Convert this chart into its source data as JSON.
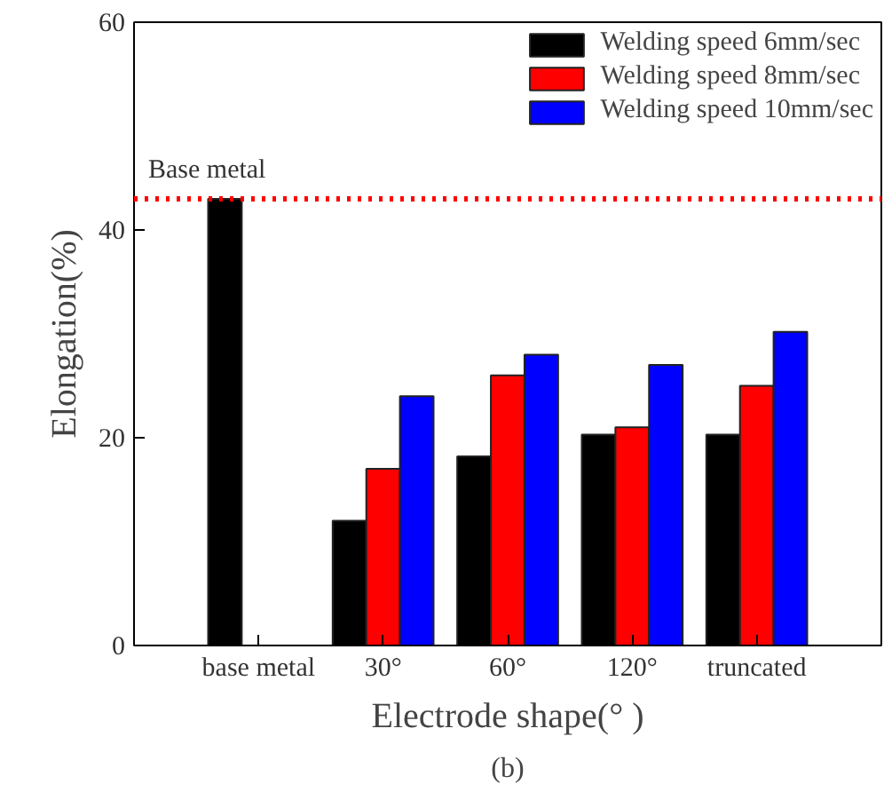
{
  "chart_data": {
    "type": "bar",
    "xlabel": "Electrode shape(° )",
    "ylabel": "Elongation(%)",
    "categories": [
      "base metal",
      "30°",
      "60°",
      "120°",
      "truncated"
    ],
    "series": [
      {
        "name": "Welding speed 6mm/sec",
        "color": "#000000",
        "values": [
          43,
          12,
          18.2,
          20.3,
          20.3
        ]
      },
      {
        "name": "Welding speed 8mm/sec",
        "color": "#ff0000",
        "values": [
          null,
          17,
          26,
          21,
          25
        ]
      },
      {
        "name": "Welding speed 10mm/sec",
        "color": "#0000ff",
        "values": [
          null,
          24,
          28,
          27,
          30.2
        ]
      }
    ],
    "ylim": [
      0,
      60
    ],
    "yticks": [
      0,
      20,
      40,
      60
    ],
    "ref_lines": [
      {
        "axis": "y",
        "value": 43,
        "label": "Base metal",
        "color": "#ff0000",
        "line_style": "dotted"
      }
    ],
    "annotations": [
      "(b)"
    ],
    "legend": "top right",
    "grid": false
  }
}
